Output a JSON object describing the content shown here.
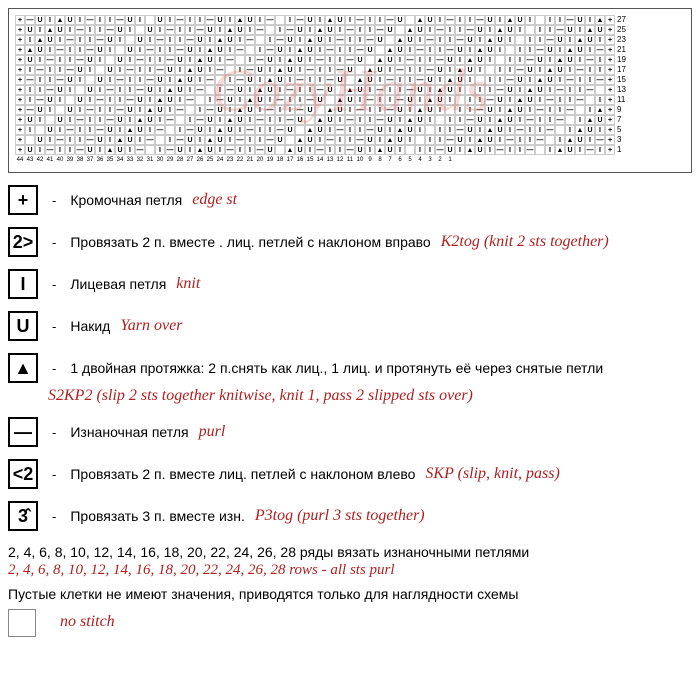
{
  "watermark": "CozyHands",
  "chart": {
    "rows_labeled": [
      27,
      25,
      23,
      21,
      19,
      17,
      15,
      13,
      11,
      9,
      7,
      5,
      3,
      1
    ],
    "col_count_left": 44,
    "col_groups": [
      [
        44,
        43,
        42,
        41
      ],
      [
        40,
        39,
        38,
        37,
        36,
        35,
        34,
        33,
        32,
        31,
        30,
        29,
        28,
        27,
        26,
        25,
        24
      ],
      [
        23,
        22,
        21
      ],
      [
        20,
        19,
        18,
        17,
        16,
        15,
        14,
        13,
        12,
        11,
        10,
        9,
        8,
        7,
        6,
        5,
        4
      ],
      [
        3,
        2,
        1
      ]
    ]
  },
  "legend": [
    {
      "symbol": "+",
      "ru": "Кромочная петля",
      "en": "edge st"
    },
    {
      "symbol": "2>",
      "ru": "Провязать 2 п. вместе .   лиц. петлей с наклоном вправо",
      "en": "K2tog (knit 2 sts together)"
    },
    {
      "symbol": "I",
      "ru": "Лицевая петля",
      "en": "knit"
    },
    {
      "symbol": "U",
      "ru": "Накид",
      "en": "Yarn over"
    },
    {
      "symbol": "▲",
      "ru": "1 двойная протяжка: 2 п.снять как лиц., 1 лиц. и протянуть её через снятые петли",
      "en_below": "S2KP2 (slip 2 sts together knitwise, knit 1, pass 2 slipped sts over)"
    },
    {
      "symbol": "—",
      "ru": "Изнаночная петля",
      "en": "purl"
    },
    {
      "symbol": "<2",
      "ru": "Провязать 2 п. вместе лиц.   петлей с наклоном влево",
      "en": "SKP (slip, knit, pass)"
    },
    {
      "symbol": "3̂",
      "ru": "Провязать 3 п. вместе изн.",
      "en": "P3tog (purl 3 sts together)"
    }
  ],
  "notes": {
    "rows_ru": "2, 4, 6, 8, 10, 12, 14, 16, 18, 20, 22, 24, 26, 28 ряды вязать изнаночными петлями",
    "rows_en": "2, 4, 6, 8, 10, 12, 14, 16, 18, 20, 22, 24, 26, 28 rows - all sts purl",
    "empty_ru": "Пустые клетки не имеют значения, приводятся только  для наглядности схемы",
    "empty_en": "no stitch"
  },
  "sample_symbols": [
    "+",
    "I",
    "—",
    "I",
    "U",
    "▲",
    "U",
    "I",
    "—",
    "I",
    "+"
  ]
}
